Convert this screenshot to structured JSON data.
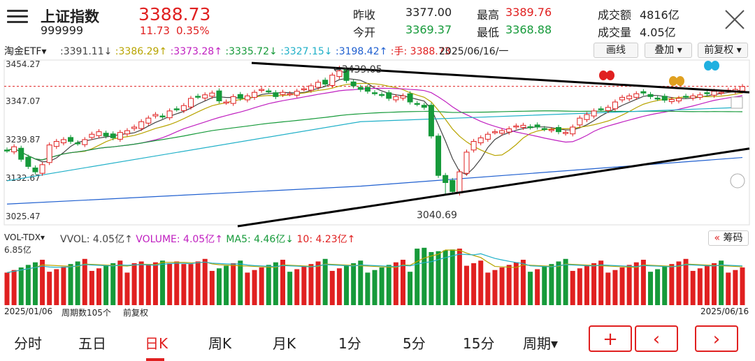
{
  "header": {
    "name": "上证指数",
    "code": "999999",
    "price": "3388.73",
    "change": "11.73",
    "change_pct": "0.35%",
    "stats": [
      {
        "label": "昨收",
        "value": "3377.00",
        "color": "#222222"
      },
      {
        "label": "今开",
        "value": "3369.37",
        "color": "#169a3a"
      },
      {
        "label": "最高",
        "value": "3389.76",
        "color": "#e02020"
      },
      {
        "label": "最低",
        "value": "3368.88",
        "color": "#169a3a"
      },
      {
        "label": "成交额",
        "value": "4816亿",
        "color": "#222222"
      },
      {
        "label": "成交量",
        "value": "4.05亿",
        "color": "#222222"
      }
    ],
    "menu_icon": "menu-icon",
    "close_icon": "close-icon"
  },
  "indicator_bar": {
    "name": "淘金ETF",
    "items": [
      {
        "text": "3391.11↓",
        "color": "#444444"
      },
      {
        "text": "3386.29↑",
        "color": "#b8a400"
      },
      {
        "text": "3373.28↑",
        "color": "#c020c0"
      },
      {
        "text": "3335.72↓",
        "color": "#169a3a"
      },
      {
        "text": "3327.15↓",
        "color": "#20b0c8"
      },
      {
        "text": "3198.42↑",
        "color": "#2060d0"
      },
      {
        "text": "手: 3388.73",
        "color": "#e02020"
      }
    ],
    "date": "2025/06/16/一",
    "buttons": {
      "draw": "画线",
      "overlay": "叠加",
      "adjust": "前复权"
    }
  },
  "chart_data": [
    {
      "type": "candlestick",
      "title": "",
      "y_ticks": [
        "3454.27",
        "3347.07",
        "3239.87",
        "3132.67",
        "3025.47"
      ],
      "ylim": [
        3025.47,
        3454.27
      ],
      "x_range": [
        "2025/01/06",
        "2025/06/16"
      ],
      "annotations": [
        {
          "text": "3439.05",
          "note": "high"
        },
        {
          "text": "3040.69",
          "note": "low"
        }
      ],
      "close_approx": [
        3210,
        3220,
        3185,
        3165,
        3150,
        3170,
        3225,
        3235,
        3240,
        3235,
        3230,
        3240,
        3255,
        3262,
        3250,
        3245,
        3260,
        3265,
        3275,
        3290,
        3300,
        3310,
        3305,
        3320,
        3325,
        3335,
        3355,
        3360,
        3365,
        3370,
        3348,
        3345,
        3360,
        3355,
        3362,
        3372,
        3380,
        3375,
        3360,
        3372,
        3368,
        3375,
        3382,
        3390,
        3400,
        3395,
        3420,
        3432,
        3405,
        3390,
        3380,
        3375,
        3370,
        3365,
        3355,
        3360,
        3362,
        3345,
        3340,
        3330,
        3250,
        3140,
        3120,
        3095,
        3150,
        3205,
        3235,
        3245,
        3255,
        3262,
        3265,
        3270,
        3278,
        3280,
        3275,
        3275,
        3270,
        3268,
        3262,
        3260,
        3275,
        3300,
        3310,
        3320,
        3325,
        3330,
        3345,
        3358,
        3362,
        3368,
        3370,
        3360,
        3355,
        3350,
        3352,
        3355,
        3360,
        3362,
        3365,
        3368,
        3375,
        3372,
        3378,
        3380,
        3388
      ],
      "period_count": 105,
      "last_close": 3388.73,
      "last_date": "2025/06/16"
    },
    {
      "type": "bar",
      "title": "VOL-TDX",
      "legend": [
        {
          "text": "VVOL: 4.05亿↑",
          "color": "#444444"
        },
        {
          "text": "VOLUME: 4.05亿↑",
          "color": "#c020c0"
        },
        {
          "text": "MA5: 4.46亿↓",
          "color": "#169a3a"
        },
        {
          "text": "10: 4.23亿↑",
          "color": "#e02020"
        }
      ],
      "y_top_label": "6.85亿",
      "ymax": 6.85,
      "button": "筹码"
    }
  ],
  "footer": {
    "start_date": "2025/01/06",
    "period_label": "周期数105个",
    "adjust_label": "前复权",
    "end_date": "2025/06/16"
  },
  "tabs": [
    {
      "label": "分时",
      "active": false
    },
    {
      "label": "五日",
      "active": false
    },
    {
      "label": "日K",
      "active": true
    },
    {
      "label": "周K",
      "active": false
    },
    {
      "label": "月K",
      "active": false
    },
    {
      "label": "1分",
      "active": false
    },
    {
      "label": "5分",
      "active": false
    },
    {
      "label": "15分",
      "active": false
    },
    {
      "label": "周期▾",
      "active": false
    }
  ],
  "nav_buttons": {
    "plus": "+",
    "prev": "‹",
    "next": "›"
  }
}
